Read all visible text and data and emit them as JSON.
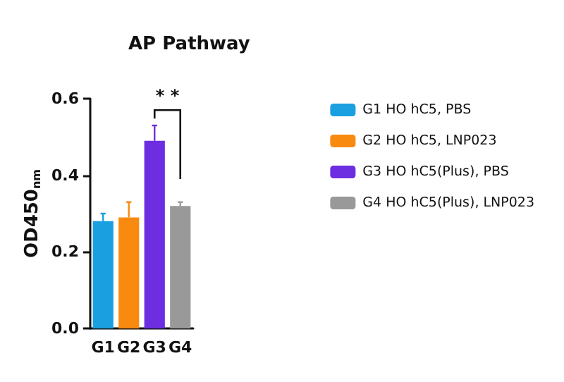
{
  "chart_data": {
    "type": "bar",
    "title": "AP Pathway",
    "ylabel": "OD450$_{nm}$",
    "categories": [
      "G1",
      "G2",
      "G3",
      "G4"
    ],
    "series": [
      {
        "name": "G1 HO hC5, PBS",
        "color": "#1aa0e0",
        "values": [
          0.28,
          null,
          null,
          null
        ],
        "errors": [
          0.02,
          null,
          null,
          null
        ]
      },
      {
        "name": "G2 HO hC5, LNP023",
        "color": "#f98a10",
        "values": [
          null,
          0.29,
          null,
          null
        ],
        "errors": [
          null,
          0.04,
          null,
          null
        ]
      },
      {
        "name": "G3 HO hC5(Plus), PBS",
        "color": "#6c2ee0",
        "values": [
          null,
          null,
          0.49,
          null
        ],
        "errors": [
          null,
          null,
          0.04,
          null
        ]
      },
      {
        "name": "G4 HO hC5(Plus), LNP023",
        "color": "#999999",
        "values": [
          null,
          null,
          null,
          0.32
        ],
        "errors": [
          null,
          null,
          null,
          0.01
        ]
      }
    ],
    "stacked": true,
    "ylim": [
      0,
      0.6
    ],
    "yticks": [
      {
        "value": 0,
        "label": "0.0"
      },
      {
        "value": 0.2,
        "label": "0.2"
      },
      {
        "value": 0.4,
        "label": "0.4"
      },
      {
        "value": 0.6,
        "label": "0.6"
      }
    ],
    "annotations": [
      "* *"
    ],
    "legend": "right",
    "grid": false
  }
}
